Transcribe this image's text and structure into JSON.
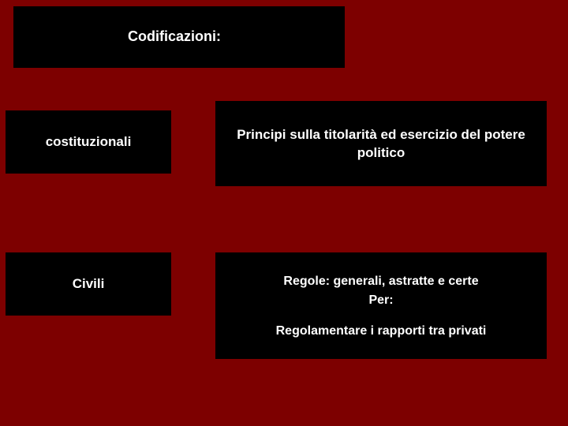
{
  "slide": {
    "background_color": "#7d0000",
    "box_color": "#000000",
    "text_color": "#ffffff",
    "title": "Codificazioni:",
    "rows": [
      {
        "left_label": "costituzionali",
        "right_text": "Principi sulla titolarità ed esercizio del potere politico"
      },
      {
        "left_label": "Civili",
        "right_line1": "Regole: generali, astratte e certe",
        "right_line2": "Per:",
        "right_line3": "Regolamentare i rapporti tra privati"
      }
    ]
  }
}
